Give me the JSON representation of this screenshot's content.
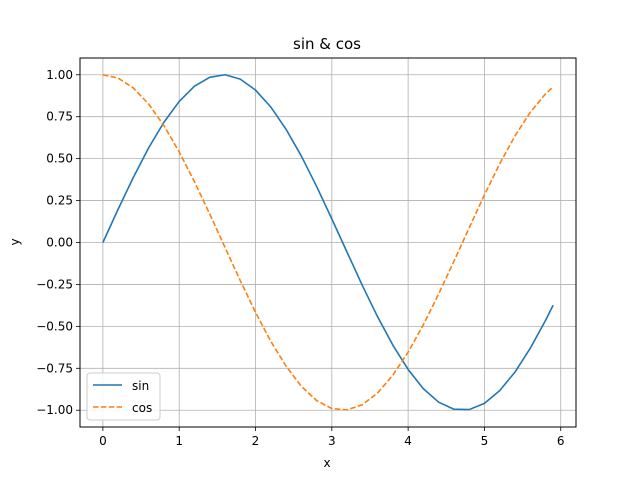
{
  "chart_data": {
    "type": "line",
    "title": "sin & cos",
    "xlabel": "x",
    "ylabel": "y",
    "xlim": [
      -0.3,
      6.2
    ],
    "ylim": [
      -1.1,
      1.1
    ],
    "xticks": [
      0,
      1,
      2,
      3,
      4,
      5,
      6
    ],
    "xtick_labels": [
      "0",
      "1",
      "2",
      "3",
      "4",
      "5",
      "6"
    ],
    "yticks": [
      -1.0,
      -0.75,
      -0.5,
      -0.25,
      0.0,
      0.25,
      0.5,
      0.75,
      1.0
    ],
    "ytick_labels": [
      "−1.00",
      "−0.75",
      "−0.50",
      "−0.25",
      "0.00",
      "0.25",
      "0.50",
      "0.75",
      "1.00"
    ],
    "grid": true,
    "legend_location": "lower-left",
    "x": [
      0.0,
      0.2,
      0.4,
      0.6,
      0.8,
      1.0,
      1.2,
      1.4,
      1.6,
      1.8,
      2.0,
      2.2,
      2.4,
      2.6,
      2.8,
      3.0,
      3.2,
      3.4,
      3.6,
      3.8,
      4.0,
      4.2,
      4.4,
      4.6,
      4.8,
      5.0,
      5.2,
      5.4,
      5.6,
      5.8,
      5.9
    ],
    "series": [
      {
        "name": "sin",
        "color": "#1f77b4",
        "style": "solid",
        "values": [
          0.0,
          0.199,
          0.389,
          0.565,
          0.717,
          0.841,
          0.932,
          0.985,
          1.0,
          0.974,
          0.909,
          0.808,
          0.675,
          0.516,
          0.335,
          0.141,
          -0.058,
          -0.256,
          -0.443,
          -0.612,
          -0.757,
          -0.872,
          -0.952,
          -0.994,
          -0.996,
          -0.959,
          -0.883,
          -0.773,
          -0.631,
          -0.465,
          -0.374
        ]
      },
      {
        "name": "cos",
        "color": "#ff7f0e",
        "style": "dashed",
        "values": [
          1.0,
          0.98,
          0.921,
          0.825,
          0.697,
          0.54,
          0.362,
          0.17,
          -0.029,
          -0.227,
          -0.416,
          -0.589,
          -0.737,
          -0.857,
          -0.942,
          -0.99,
          -0.998,
          -0.967,
          -0.897,
          -0.791,
          -0.654,
          -0.49,
          -0.307,
          -0.112,
          0.087,
          0.284,
          0.469,
          0.635,
          0.776,
          0.886,
          0.927
        ]
      }
    ]
  }
}
